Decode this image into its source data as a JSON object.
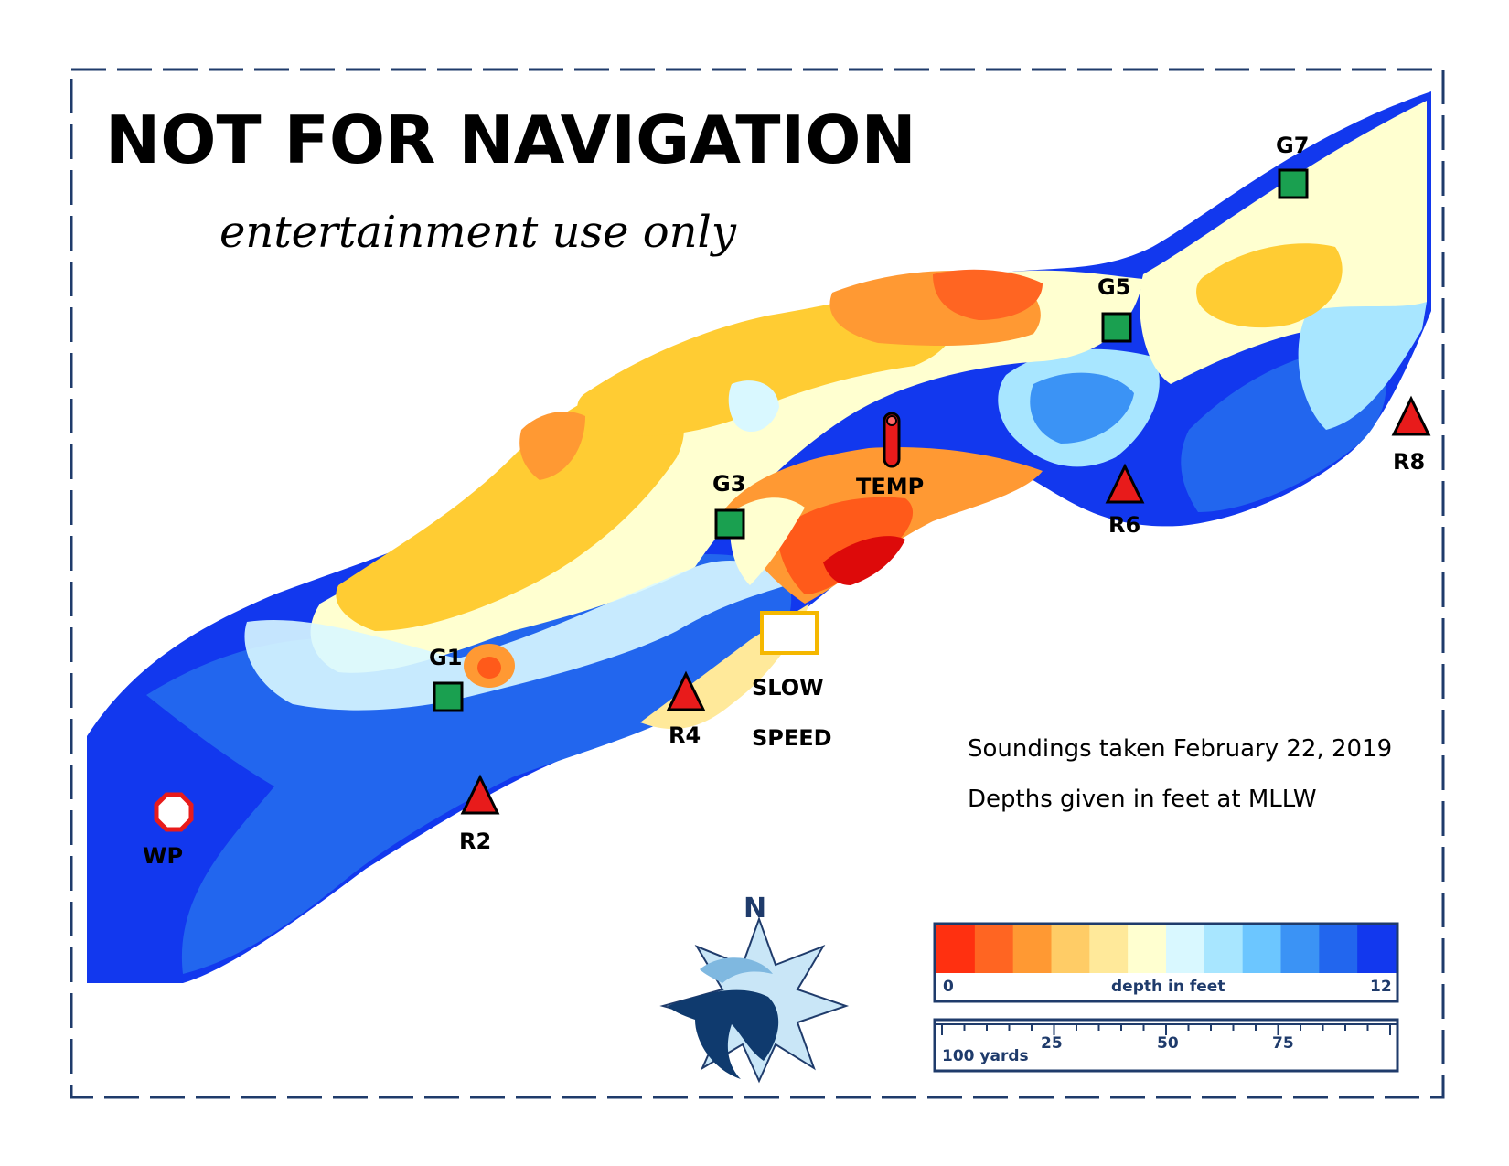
{
  "title": "NOT FOR NAVIGATION",
  "subtitle": "entertainment use only",
  "notes": {
    "line1": "Soundings taken February 22, 2019",
    "line2": "Depths given in feet at MLLW"
  },
  "markers": {
    "g1": "G1",
    "g3": "G3",
    "g5": "G5",
    "g7": "G7",
    "r2": "R2",
    "r4": "R4",
    "r6": "R6",
    "r8": "R8",
    "wp": "WP",
    "temp": "TEMP",
    "slow": "SLOW",
    "speed": "SPEED"
  },
  "compass": {
    "north": "N"
  },
  "legend": {
    "min": "0",
    "max": "12",
    "label": "depth in feet",
    "colors": [
      "#ff3010",
      "#ff6522",
      "#ff9933",
      "#ffcc66",
      "#ffe99a",
      "#ffffd0",
      "#d9f8ff",
      "#a8e6ff",
      "#6cc6ff",
      "#3b93f5",
      "#2266ee",
      "#1238ee"
    ]
  },
  "scale": {
    "unit_label": "100 yards",
    "t25": "25",
    "t50": "50",
    "t75": "75"
  },
  "colors": {
    "frame": "#1f3b6b",
    "green_marker": "#1aa050",
    "red_marker": "#e81b1b",
    "slow_box": "#f5b800"
  }
}
